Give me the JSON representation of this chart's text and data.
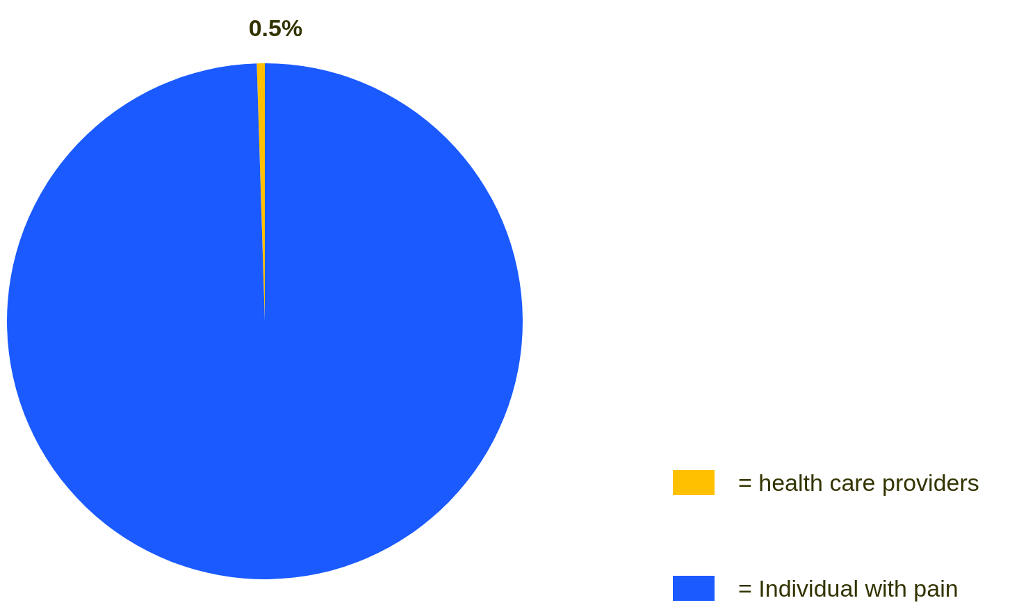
{
  "chart_data": {
    "type": "pie",
    "categories": [
      "= health care providers",
      "= Individual with pain"
    ],
    "values": [
      0.5,
      99.5
    ],
    "colors": [
      "#ffc000",
      "#1a5aff"
    ],
    "value_labels": [
      "0.5%",
      null
    ],
    "legend": "bottom right"
  }
}
